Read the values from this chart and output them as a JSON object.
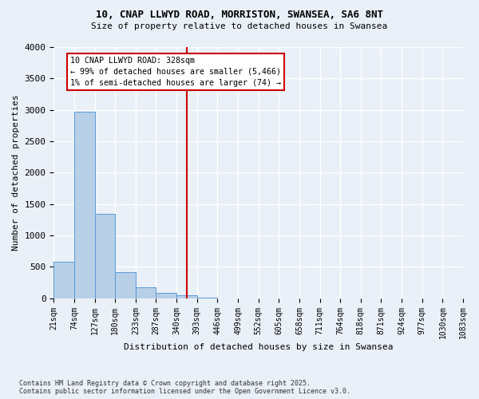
{
  "title_line1": "10, CNAP LLWYD ROAD, MORRISTON, SWANSEA, SA6 8NT",
  "title_line2": "Size of property relative to detached houses in Swansea",
  "xlabel": "Distribution of detached houses by size in Swansea",
  "ylabel": "Number of detached properties",
  "footnote": "Contains HM Land Registry data © Crown copyright and database right 2025.\nContains public sector information licensed under the Open Government Licence v3.0.",
  "bar_values": [
    580,
    2970,
    1340,
    420,
    175,
    80,
    40,
    10,
    0,
    0,
    0,
    0,
    0,
    0,
    0,
    0,
    0,
    0,
    0,
    0
  ],
  "bin_labels": [
    "21sqm",
    "74sqm",
    "127sqm",
    "180sqm",
    "233sqm",
    "287sqm",
    "340sqm",
    "393sqm",
    "446sqm",
    "499sqm",
    "552sqm",
    "605sqm",
    "658sqm",
    "711sqm",
    "764sqm",
    "818sqm",
    "871sqm",
    "924sqm",
    "977sqm",
    "1030sqm",
    "1083sqm"
  ],
  "bar_color": "#b8cfe8",
  "bar_edge_color": "#5b9bd5",
  "bg_color": "#eaf0f8",
  "grid_color": "#ffffff",
  "vline_color": "#cc0000",
  "vline_position": 6.5,
  "annotation_text": "10 CNAP LLWYD ROAD: 328sqm\n← 99% of detached houses are smaller (5,466)\n1% of semi-detached houses are larger (74) →",
  "annotation_box_color": "#ffffff",
  "annotation_box_edge": "#cc0000",
  "ylim": [
    0,
    4000
  ],
  "yticks": [
    0,
    500,
    1000,
    1500,
    2000,
    2500,
    3000,
    3500,
    4000
  ]
}
